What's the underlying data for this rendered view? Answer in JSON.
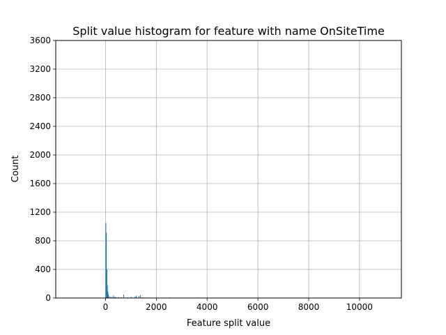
{
  "chart_data": {
    "type": "bar",
    "title": "Split value histogram for feature with name OnSiteTime",
    "xlabel": "Feature split value",
    "ylabel": "Count",
    "xlim": [
      -1960,
      11650
    ],
    "ylim": [
      0,
      3600
    ],
    "xticks": [
      0,
      2000,
      4000,
      6000,
      8000,
      10000
    ],
    "yticks": [
      0,
      400,
      800,
      1200,
      1600,
      2000,
      2400,
      2800,
      3200,
      3600
    ],
    "grid": true,
    "bar_color": "#1f77b4",
    "bin_width": 20,
    "bins": [
      {
        "x": 0,
        "count": 1050
      },
      {
        "x": 20,
        "count": 910
      },
      {
        "x": 40,
        "count": 400
      },
      {
        "x": 60,
        "count": 180
      },
      {
        "x": 80,
        "count": 90
      },
      {
        "x": 100,
        "count": 50
      },
      {
        "x": 140,
        "count": 25
      },
      {
        "x": 200,
        "count": 15
      },
      {
        "x": 260,
        "count": 10
      },
      {
        "x": 300,
        "count": 35
      },
      {
        "x": 360,
        "count": 20
      },
      {
        "x": 400,
        "count": 10
      },
      {
        "x": 500,
        "count": 15
      },
      {
        "x": 600,
        "count": 10
      },
      {
        "x": 700,
        "count": 50
      },
      {
        "x": 850,
        "count": 10
      },
      {
        "x": 1000,
        "count": 15
      },
      {
        "x": 1150,
        "count": 20
      },
      {
        "x": 1200,
        "count": 35
      },
      {
        "x": 1300,
        "count": 30
      },
      {
        "x": 1360,
        "count": 40
      },
      {
        "x": 1450,
        "count": 10
      },
      {
        "x": 1600,
        "count": 8
      },
      {
        "x": 1800,
        "count": 5
      },
      {
        "x": 2000,
        "count": 6
      },
      {
        "x": 2500,
        "count": 10
      },
      {
        "x": 2800,
        "count": 6
      },
      {
        "x": 3600,
        "count": 8
      },
      {
        "x": 3900,
        "count": 5
      }
    ]
  }
}
